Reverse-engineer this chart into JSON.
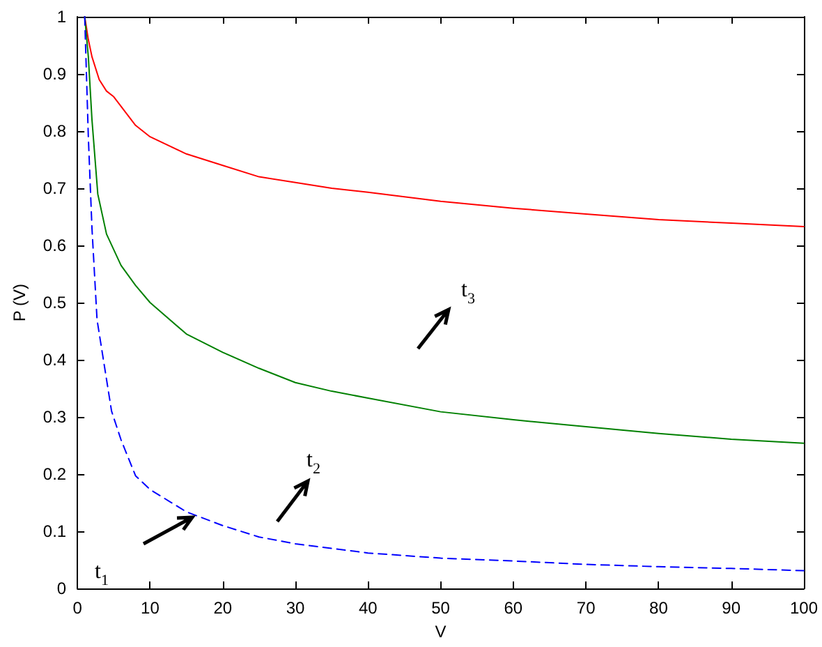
{
  "chart_data": {
    "type": "line",
    "xlabel": "V",
    "ylabel": "P (V)",
    "xlim": [
      0,
      100
    ],
    "xticks": [
      0,
      10,
      20,
      30,
      40,
      50,
      60,
      70,
      80,
      90,
      100
    ],
    "ylim": [
      0,
      1
    ],
    "yticks": [
      0,
      0.1,
      0.2,
      0.3,
      0.4,
      0.5,
      0.6,
      0.7,
      0.8,
      0.9,
      1
    ],
    "grid": false,
    "marker": "none",
    "series": [
      {
        "color": "#ff0000",
        "line_style": "solid",
        "x": [
          1,
          1.5,
          2,
          3,
          4,
          5,
          8,
          10,
          15,
          20,
          25,
          30,
          35,
          40,
          50,
          60,
          70,
          80,
          90,
          100
        ],
        "values": [
          1,
          0.96,
          0.93,
          0.89,
          0.87,
          0.86,
          0.81,
          0.79,
          0.76,
          0.74,
          0.72,
          0.71,
          0.7,
          0.693,
          0.677,
          0.665,
          0.655,
          0.645,
          0.639,
          0.633
        ]
      },
      {
        "color": "#008000",
        "line_style": "solid",
        "x": [
          1,
          1.5,
          2,
          2.8,
          4,
          6,
          8,
          10,
          15,
          20,
          25,
          30,
          35,
          40,
          50,
          60,
          70,
          80,
          90,
          100
        ],
        "values": [
          1,
          0.93,
          0.82,
          0.69,
          0.62,
          0.565,
          0.53,
          0.5,
          0.445,
          0.413,
          0.385,
          0.36,
          0.345,
          0.333,
          0.309,
          0.295,
          0.283,
          0.271,
          0.261,
          0.254
        ]
      },
      {
        "color": "#0000ff",
        "line_style": "dashed",
        "x": [
          1,
          1.5,
          2,
          2.7,
          4.7,
          6,
          8,
          10,
          15,
          20,
          25,
          30,
          35,
          40,
          50,
          60,
          70,
          80,
          90,
          100
        ],
        "values": [
          1,
          0.79,
          0.63,
          0.47,
          0.31,
          0.26,
          0.197,
          0.173,
          0.134,
          0.11,
          0.09,
          0.078,
          0.07,
          0.062,
          0.053,
          0.048,
          0.042,
          0.038,
          0.035,
          0.031
        ]
      }
    ],
    "annotations": [
      "t$_{1}$",
      "t$_{2}$",
      "t$_{3}$"
    ]
  }
}
